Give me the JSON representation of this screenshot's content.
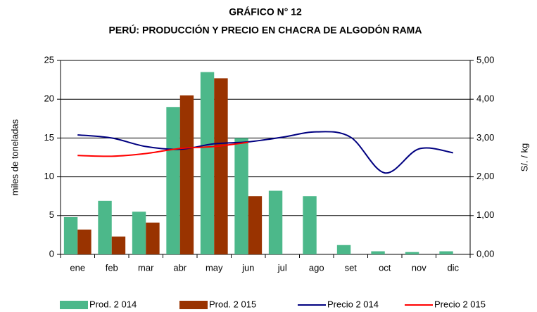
{
  "chart_data": {
    "type": "bar_line",
    "title": "GRÁFICO N° 12",
    "subtitle": "PERÚ: PRODUCCIÓN Y PRECIO EN CHACRA DE ALGODÓN RAMA",
    "y_label": "miles de toneladas",
    "y2_label": "S/. / kg",
    "categories": [
      "ene",
      "feb",
      "mar",
      "abr",
      "may",
      "jun",
      "jul",
      "ago",
      "set",
      "oct",
      "nov",
      "dic"
    ],
    "series": [
      {
        "name": "Prod. 2 014",
        "kind": "bar",
        "color": "#4cb88a",
        "values": [
          4.8,
          6.9,
          5.5,
          19.0,
          23.5,
          15.0,
          8.2,
          7.5,
          1.2,
          0.4,
          0.3,
          0.4
        ]
      },
      {
        "name": "Prod. 2 015",
        "kind": "bar",
        "color": "#993300",
        "values": [
          3.2,
          2.3,
          4.1,
          20.5,
          22.7,
          7.5,
          null,
          null,
          null,
          null,
          null,
          null
        ]
      },
      {
        "name": "Precio 2 014",
        "kind": "line",
        "axis": "y2",
        "color": "#000080",
        "values": [
          3.08,
          3.0,
          2.78,
          2.71,
          2.85,
          2.9,
          3.02,
          3.16,
          3.02,
          2.1,
          2.72,
          2.62
        ]
      },
      {
        "name": "Precio 2 015",
        "kind": "line",
        "axis": "y2",
        "color": "#ff0000",
        "values": [
          2.55,
          2.53,
          2.6,
          2.73,
          2.78,
          2.89,
          null,
          null,
          null,
          null,
          null,
          null
        ]
      }
    ],
    "ylim": [
      0,
      25
    ],
    "yticks": [
      0,
      5,
      10,
      15,
      20,
      25
    ],
    "y2lim": [
      0,
      5
    ],
    "y2ticks": [
      {
        "value": 0,
        "label": "0,00"
      },
      {
        "value": 1,
        "label": "1,00"
      },
      {
        "value": 2,
        "label": "2,00"
      },
      {
        "value": 3,
        "label": "3,00"
      },
      {
        "value": 4,
        "label": "4,00"
      },
      {
        "value": 5,
        "label": "5,00"
      }
    ],
    "grid": true,
    "legend": "bottom"
  }
}
